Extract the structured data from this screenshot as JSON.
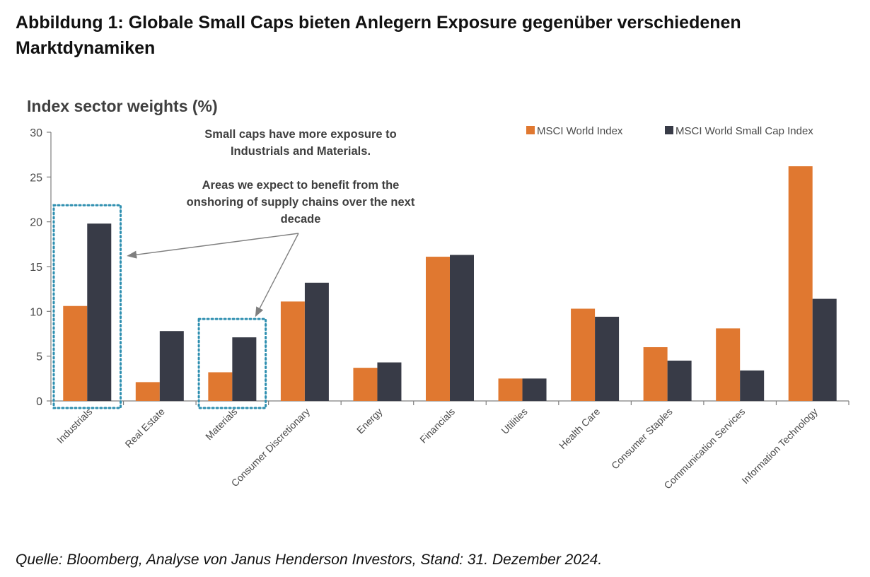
{
  "figure_title": "Abbildung 1: Globale Small Caps bieten Anlegern Exposure gegenüber verschiedenen Marktdynamiken",
  "source": "Quelle: Bloomberg, Analyse von Janus Henderson Investors, Stand: 31. Dezember 2024.",
  "colors": {
    "msci_world": "#E07830",
    "msci_small_cap": "#383B47",
    "highlight_box": "#2E8FB0",
    "axis": "#7f7f7f",
    "arrow": "#7f7f7f"
  },
  "chart_data": {
    "type": "bar",
    "title": "Index sector weights (%)",
    "xlabel": "",
    "ylabel": "",
    "ylim": [
      0,
      30
    ],
    "yticks": [
      "0",
      "5",
      "10",
      "15",
      "20",
      "25",
      "30"
    ],
    "grid": false,
    "legend_position": "top-right",
    "categories": [
      "Industrials",
      "Real Estate",
      "Materials",
      "Consumer Discretionary",
      "Energy",
      "Financials",
      "Utilities",
      "Health Care",
      "Consumer Staples",
      "Communication Services",
      "Information Technology"
    ],
    "series": [
      {
        "name": "MSCI World Index",
        "values": [
          10.6,
          2.1,
          3.2,
          11.1,
          3.7,
          16.1,
          2.5,
          10.3,
          6.0,
          8.1,
          26.2
        ]
      },
      {
        "name": "MSCI World Small Cap Index",
        "values": [
          19.8,
          7.8,
          7.1,
          13.2,
          4.3,
          16.3,
          2.5,
          9.4,
          4.5,
          3.4,
          11.4
        ]
      }
    ],
    "annotations": [
      {
        "lines": [
          "Small caps have more exposure to",
          "Industrials and Materials."
        ]
      },
      {
        "lines": [
          "Areas we expect to benefit from the",
          "onshoring of supply chains over the next",
          "decade"
        ]
      }
    ],
    "highlighted_categories": [
      "Industrials",
      "Materials"
    ]
  }
}
